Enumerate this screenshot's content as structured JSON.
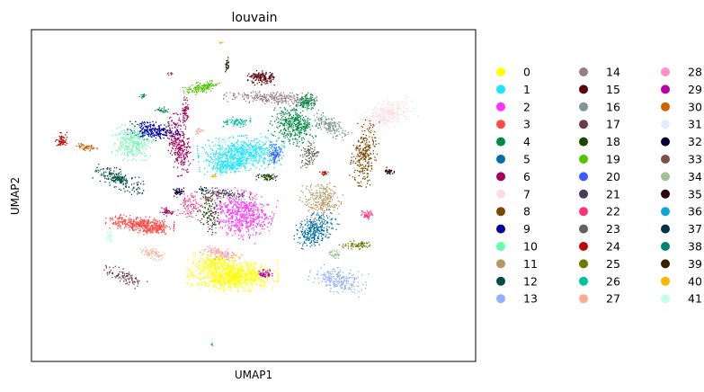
{
  "chart_data": {
    "type": "scatter",
    "title": "louvain",
    "xlabel": "UMAP1",
    "ylabel": "UMAP2",
    "grid": false,
    "x_ticks": false,
    "y_ticks": false,
    "legend_placement": "right",
    "legend_columns": 3,
    "series": [
      {
        "name": "0",
        "color": "#ffff00"
      },
      {
        "name": "1",
        "color": "#1ce6ff"
      },
      {
        "name": "2",
        "color": "#ff34ff"
      },
      {
        "name": "3",
        "color": "#ff4a46"
      },
      {
        "name": "4",
        "color": "#008941"
      },
      {
        "name": "5",
        "color": "#006fa6"
      },
      {
        "name": "6",
        "color": "#a30059"
      },
      {
        "name": "7",
        "color": "#ffdbe5"
      },
      {
        "name": "8",
        "color": "#7a4900"
      },
      {
        "name": "9",
        "color": "#0000a6"
      },
      {
        "name": "10",
        "color": "#63ffac"
      },
      {
        "name": "11",
        "color": "#b79762"
      },
      {
        "name": "12",
        "color": "#004d43"
      },
      {
        "name": "13",
        "color": "#8fb0ff"
      },
      {
        "name": "14",
        "color": "#997d87"
      },
      {
        "name": "15",
        "color": "#5a0007"
      },
      {
        "name": "16",
        "color": "#809693"
      },
      {
        "name": "17",
        "color": "#6a3a4c"
      },
      {
        "name": "18",
        "color": "#1b4400"
      },
      {
        "name": "19",
        "color": "#4fc601"
      },
      {
        "name": "20",
        "color": "#3b5dff"
      },
      {
        "name": "21",
        "color": "#4a3b53"
      },
      {
        "name": "22",
        "color": "#ff2f80"
      },
      {
        "name": "23",
        "color": "#61615a"
      },
      {
        "name": "24",
        "color": "#ba0900"
      },
      {
        "name": "25",
        "color": "#6b7900"
      },
      {
        "name": "26",
        "color": "#00c2a0"
      },
      {
        "name": "27",
        "color": "#ffaa92"
      },
      {
        "name": "28",
        "color": "#ff90c9"
      },
      {
        "name": "29",
        "color": "#b903aa"
      },
      {
        "name": "30",
        "color": "#d16100"
      },
      {
        "name": "31",
        "color": "#ddefff"
      },
      {
        "name": "32",
        "color": "#000035"
      },
      {
        "name": "33",
        "color": "#7b4f4b"
      },
      {
        "name": "34",
        "color": "#a1c299"
      },
      {
        "name": "35",
        "color": "#300018"
      },
      {
        "name": "36",
        "color": "#0aa6d8"
      },
      {
        "name": "37",
        "color": "#013349"
      },
      {
        "name": "38",
        "color": "#00846f"
      },
      {
        "name": "39",
        "color": "#372101"
      },
      {
        "name": "40",
        "color": "#ffb500"
      },
      {
        "name": "41",
        "color": "#c2ffed"
      }
    ]
  }
}
